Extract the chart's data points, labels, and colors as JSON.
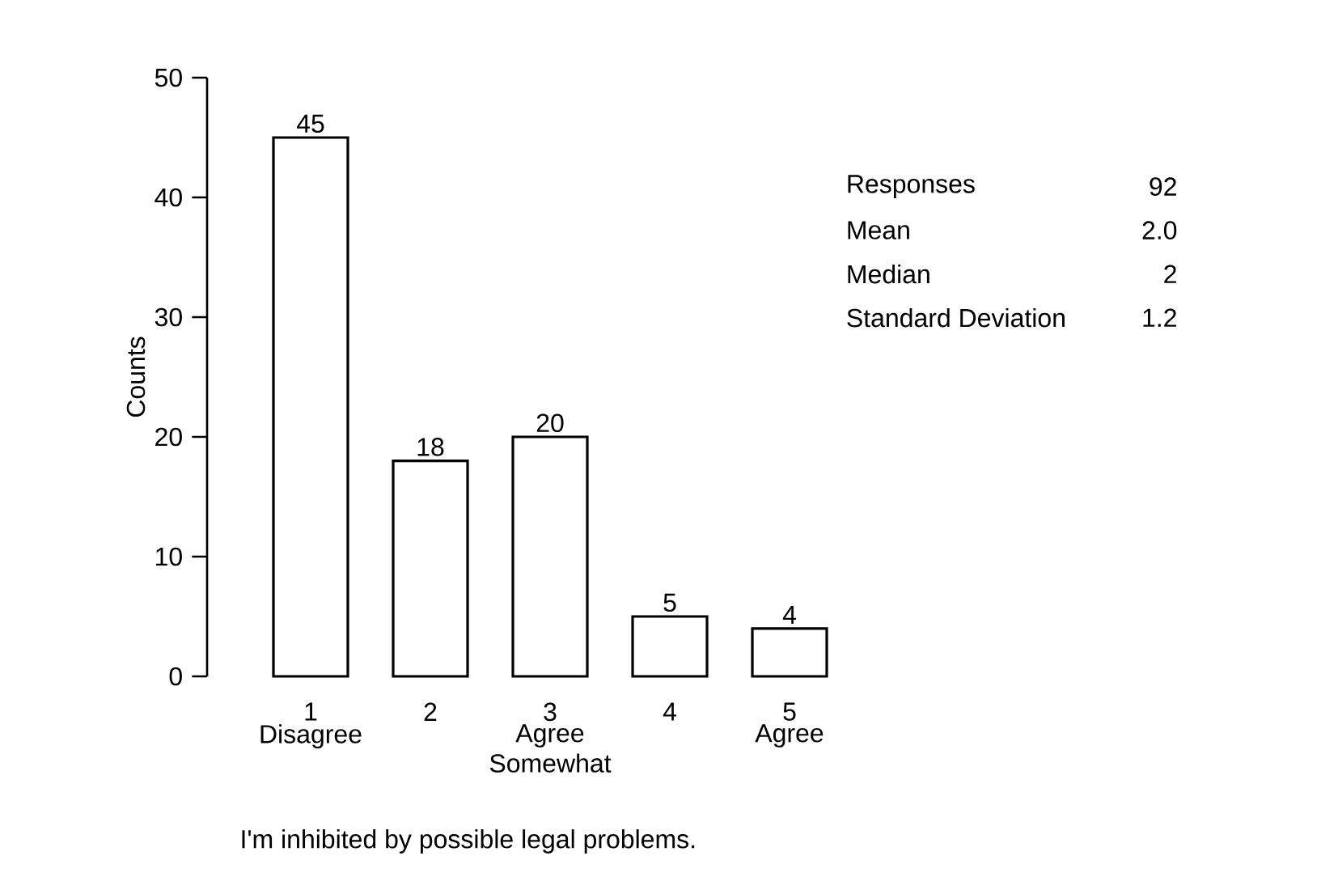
{
  "chart_data": {
    "type": "bar",
    "categories": [
      "1",
      "2",
      "3",
      "4",
      "5"
    ],
    "values": [
      45,
      18,
      20,
      5,
      4
    ],
    "color": "#ffffff",
    "ylabel": "Counts",
    "ylim": [
      0,
      50
    ],
    "yticks": [
      0,
      10,
      20,
      30,
      40,
      50
    ],
    "data_labels": true,
    "annotations": [
      "Disagree",
      "Agree Somewhat",
      "Agree",
      "Responses",
      "92",
      "Mean",
      "2.0",
      "Median",
      "2",
      "Standard Deviation",
      "1.2",
      "I'm inhibited by possible legal problems."
    ]
  }
}
